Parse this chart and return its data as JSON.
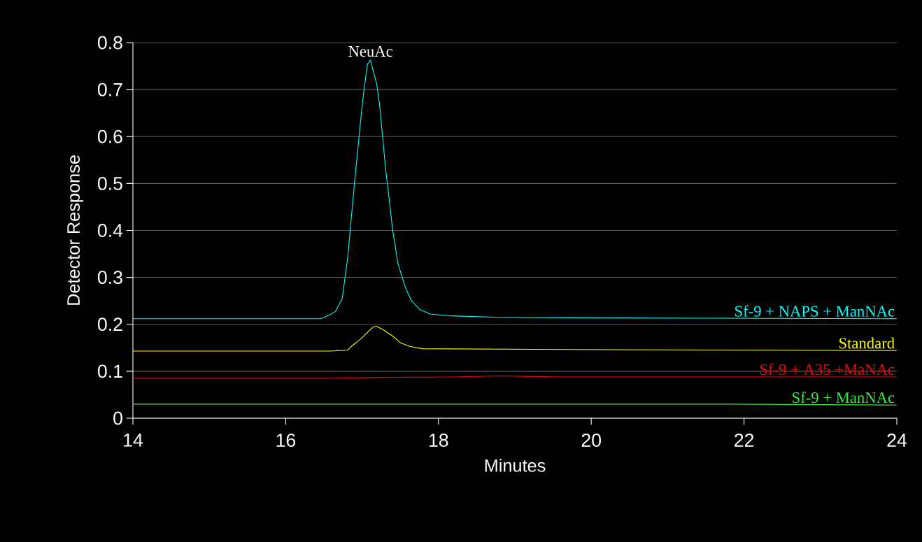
{
  "chart_data": {
    "type": "line",
    "xlabel": "Minutes",
    "ylabel": "Detector Response",
    "xlim": [
      14,
      24
    ],
    "ylim": [
      0,
      0.8
    ],
    "xticks": [
      14,
      16,
      18,
      20,
      22,
      24
    ],
    "yticks": [
      0,
      0.1,
      0.2,
      0.3,
      0.4,
      0.5,
      0.6,
      0.7,
      0.8
    ],
    "grid": "y",
    "annotations": [
      {
        "text": "NeuAc",
        "x": 17.11,
        "y": 0.763
      }
    ],
    "series": [
      {
        "name": "Sf-9 + NAPS + ManNAc",
        "color": "#00ffff",
        "x": [
          14,
          16.46,
          16.56,
          16.65,
          16.74,
          16.81,
          16.9,
          16.98,
          17.02,
          17.07,
          17.11,
          17.14,
          17.19,
          17.23,
          17.31,
          17.35,
          17.4,
          17.47,
          17.57,
          17.64,
          17.75,
          17.89,
          18.16,
          18.8,
          19.7,
          21.5,
          24
        ],
        "values": [
          0.212,
          0.212,
          0.219,
          0.227,
          0.255,
          0.34,
          0.5,
          0.633,
          0.693,
          0.754,
          0.763,
          0.743,
          0.713,
          0.666,
          0.528,
          0.473,
          0.401,
          0.329,
          0.277,
          0.252,
          0.232,
          0.222,
          0.218,
          0.215,
          0.214,
          0.213,
          0.212
        ]
      },
      {
        "name": "Standard",
        "color": "#ffff00",
        "x": [
          14,
          16.58,
          16.81,
          16.86,
          16.97,
          17.14,
          17.19,
          17.28,
          17.4,
          17.5,
          17.62,
          17.79,
          20.3,
          24
        ],
        "values": [
          0.143,
          0.143,
          0.145,
          0.153,
          0.167,
          0.194,
          0.196,
          0.188,
          0.175,
          0.161,
          0.153,
          0.148,
          0.146,
          0.144
        ]
      },
      {
        "name": "Sf-9 + A35 +MaNAc",
        "color": "#ff0000",
        "x": [
          14,
          16.6,
          17.2,
          18.2,
          18.8,
          19.6,
          24
        ],
        "values": [
          0.085,
          0.085,
          0.087,
          0.088,
          0.09,
          0.088,
          0.088
        ]
      },
      {
        "name": "Sf-9 + ManNAc",
        "color": "#33ee33",
        "x": [
          14,
          21.85,
          24
        ],
        "values": [
          0.03,
          0.03,
          0.028
        ]
      }
    ]
  }
}
